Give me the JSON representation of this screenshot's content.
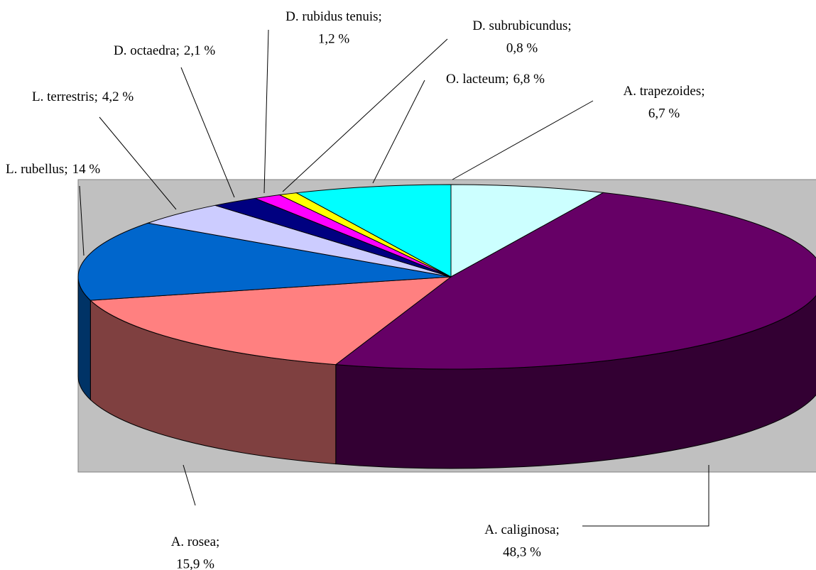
{
  "chart_data": {
    "type": "pie3d",
    "categories": [
      "A. trapezoides",
      "A. caliginosa",
      "A. rosea",
      "L. rubellus",
      "L. terrestris",
      "D. octaedra",
      "D. rubidus tenuis",
      "D. subrubicundus",
      "O. lacteum"
    ],
    "values": [
      6.7,
      48.3,
      15.9,
      14,
      4.2,
      2.1,
      1.2,
      0.8,
      6.8
    ],
    "value_labels": [
      "6,7 %",
      "48,3 %",
      "15,9 %",
      "14 %",
      "4,2 %",
      "2,1 %",
      "1,2 %",
      "0,8 %",
      "6,8 %"
    ],
    "label_separator": ";",
    "colors": [
      "#ccffff",
      "#660066",
      "#ff8080",
      "#0066cc",
      "#ccccff",
      "#000080",
      "#ff00ff",
      "#ffff00",
      "#00ffff"
    ]
  }
}
